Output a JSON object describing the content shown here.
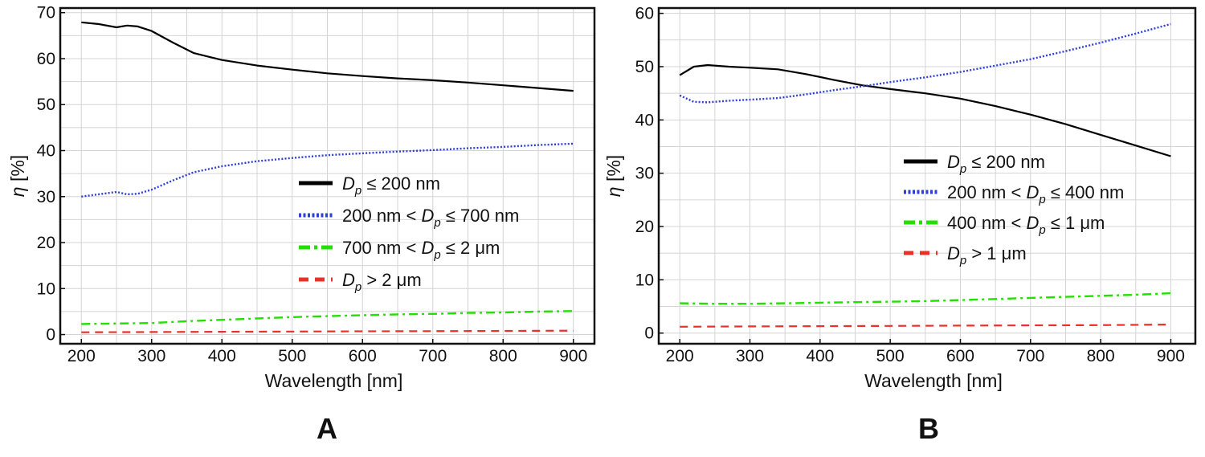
{
  "chart_data": [
    {
      "type": "line",
      "panel_label": "A",
      "xlabel": "Wavelength [nm]",
      "ylabel_symbol": "η",
      "ylabel_unit": "[%]",
      "xlim": [
        170,
        930
      ],
      "ylim": [
        -2,
        71
      ],
      "xticks": [
        200,
        300,
        400,
        500,
        600,
        700,
        800,
        900
      ],
      "yticks": [
        0,
        10,
        20,
        30,
        40,
        50,
        60,
        70
      ],
      "grid": true,
      "legend_position": "center-right",
      "series": [
        {
          "name": "Dp ≤ 200 nm",
          "legend": {
            "pre": "",
            "var": "D",
            "sub": "p",
            "post": " ≤ 200 nm"
          },
          "color": "#000000",
          "style": "solid",
          "x": [
            200,
            225,
            250,
            265,
            280,
            300,
            330,
            360,
            400,
            450,
            500,
            550,
            600,
            650,
            700,
            750,
            800,
            850,
            900
          ],
          "y": [
            67.9,
            67.5,
            66.8,
            67.2,
            67.0,
            66.0,
            63.5,
            61.2,
            59.7,
            58.5,
            57.6,
            56.8,
            56.2,
            55.7,
            55.3,
            54.8,
            54.2,
            53.6,
            53.0
          ]
        },
        {
          "name": "200 nm < Dp ≤ 700 nm",
          "legend": {
            "pre": "200 nm < ",
            "var": "D",
            "sub": "p",
            "post": " ≤ 700 nm"
          },
          "color": "#2f3fd6",
          "style": "dotted",
          "x": [
            200,
            225,
            250,
            265,
            280,
            300,
            330,
            360,
            400,
            450,
            500,
            550,
            600,
            650,
            700,
            750,
            800,
            850,
            900
          ],
          "y": [
            30.0,
            30.5,
            31.0,
            30.5,
            30.6,
            31.5,
            33.5,
            35.3,
            36.6,
            37.7,
            38.4,
            39.0,
            39.4,
            39.8,
            40.1,
            40.5,
            40.8,
            41.2,
            41.5
          ]
        },
        {
          "name": "700 nm < Dp ≤ 2 μm",
          "legend": {
            "pre": "700 nm < ",
            "var": "D",
            "sub": "p",
            "post": " ≤ 2 μm"
          },
          "color": "#22e000",
          "style": "dashdot",
          "x": [
            200,
            250,
            300,
            350,
            400,
            450,
            500,
            550,
            600,
            650,
            700,
            750,
            800,
            850,
            900
          ],
          "y": [
            2.3,
            2.4,
            2.5,
            2.9,
            3.2,
            3.5,
            3.8,
            4.0,
            4.2,
            4.4,
            4.5,
            4.7,
            4.8,
            5.0,
            5.1
          ]
        },
        {
          "name": "Dp > 2 μm",
          "legend": {
            "pre": "",
            "var": "D",
            "sub": "p",
            "post": " > 2 μm"
          },
          "color": "#e8312a",
          "style": "dashed",
          "x": [
            200,
            300,
            400,
            500,
            600,
            700,
            800,
            900
          ],
          "y": [
            0.5,
            0.55,
            0.6,
            0.65,
            0.7,
            0.75,
            0.8,
            0.85
          ]
        }
      ]
    },
    {
      "type": "line",
      "panel_label": "B",
      "xlabel": "Wavelength [nm]",
      "ylabel_symbol": "η",
      "ylabel_unit": "[%]",
      "xlim": [
        170,
        935
      ],
      "ylim": [
        -2,
        61
      ],
      "xticks": [
        200,
        300,
        400,
        500,
        600,
        700,
        800,
        900
      ],
      "yticks": [
        0,
        10,
        20,
        30,
        40,
        50,
        60
      ],
      "grid": true,
      "legend_position": "center-right",
      "series": [
        {
          "name": "Dp ≤ 200 nm",
          "legend": {
            "pre": "",
            "var": "D",
            "sub": "p",
            "post": " ≤ 200 nm"
          },
          "color": "#000000",
          "style": "solid",
          "x": [
            200,
            220,
            240,
            270,
            300,
            340,
            380,
            420,
            460,
            500,
            550,
            600,
            650,
            700,
            750,
            800,
            850,
            900
          ],
          "y": [
            48.4,
            50.0,
            50.3,
            50.0,
            49.8,
            49.5,
            48.6,
            47.5,
            46.5,
            45.8,
            45.0,
            44.0,
            42.6,
            41.0,
            39.2,
            37.2,
            35.2,
            33.2
          ]
        },
        {
          "name": "200 nm < Dp ≤ 400 nm",
          "legend": {
            "pre": "200 nm < ",
            "var": "D",
            "sub": "p",
            "post": " ≤ 400 nm"
          },
          "color": "#2f3fd6",
          "style": "dotted",
          "x": [
            200,
            220,
            240,
            270,
            300,
            340,
            380,
            420,
            460,
            500,
            550,
            600,
            650,
            700,
            750,
            800,
            850,
            900
          ],
          "y": [
            44.6,
            43.4,
            43.3,
            43.6,
            43.8,
            44.1,
            44.8,
            45.6,
            46.3,
            47.1,
            48.0,
            49.0,
            50.2,
            51.4,
            52.9,
            54.5,
            56.2,
            58.0
          ]
        },
        {
          "name": "400 nm < Dp ≤ 1 μm",
          "legend": {
            "pre": "400 nm < ",
            "var": "D",
            "sub": "p",
            "post": " ≤ 1 μm"
          },
          "color": "#22e000",
          "style": "dashdot",
          "x": [
            200,
            250,
            300,
            350,
            400,
            450,
            500,
            550,
            600,
            650,
            700,
            750,
            800,
            850,
            900
          ],
          "y": [
            5.6,
            5.5,
            5.5,
            5.6,
            5.7,
            5.8,
            5.9,
            6.0,
            6.2,
            6.4,
            6.6,
            6.8,
            7.0,
            7.2,
            7.5
          ]
        },
        {
          "name": "Dp > 1 μm",
          "legend": {
            "pre": "",
            "var": "D",
            "sub": "p",
            "post": " > 1 μm"
          },
          "color": "#e8312a",
          "style": "dashed",
          "x": [
            200,
            300,
            400,
            500,
            600,
            700,
            800,
            900
          ],
          "y": [
            1.2,
            1.25,
            1.3,
            1.35,
            1.4,
            1.45,
            1.5,
            1.6
          ]
        }
      ]
    }
  ]
}
